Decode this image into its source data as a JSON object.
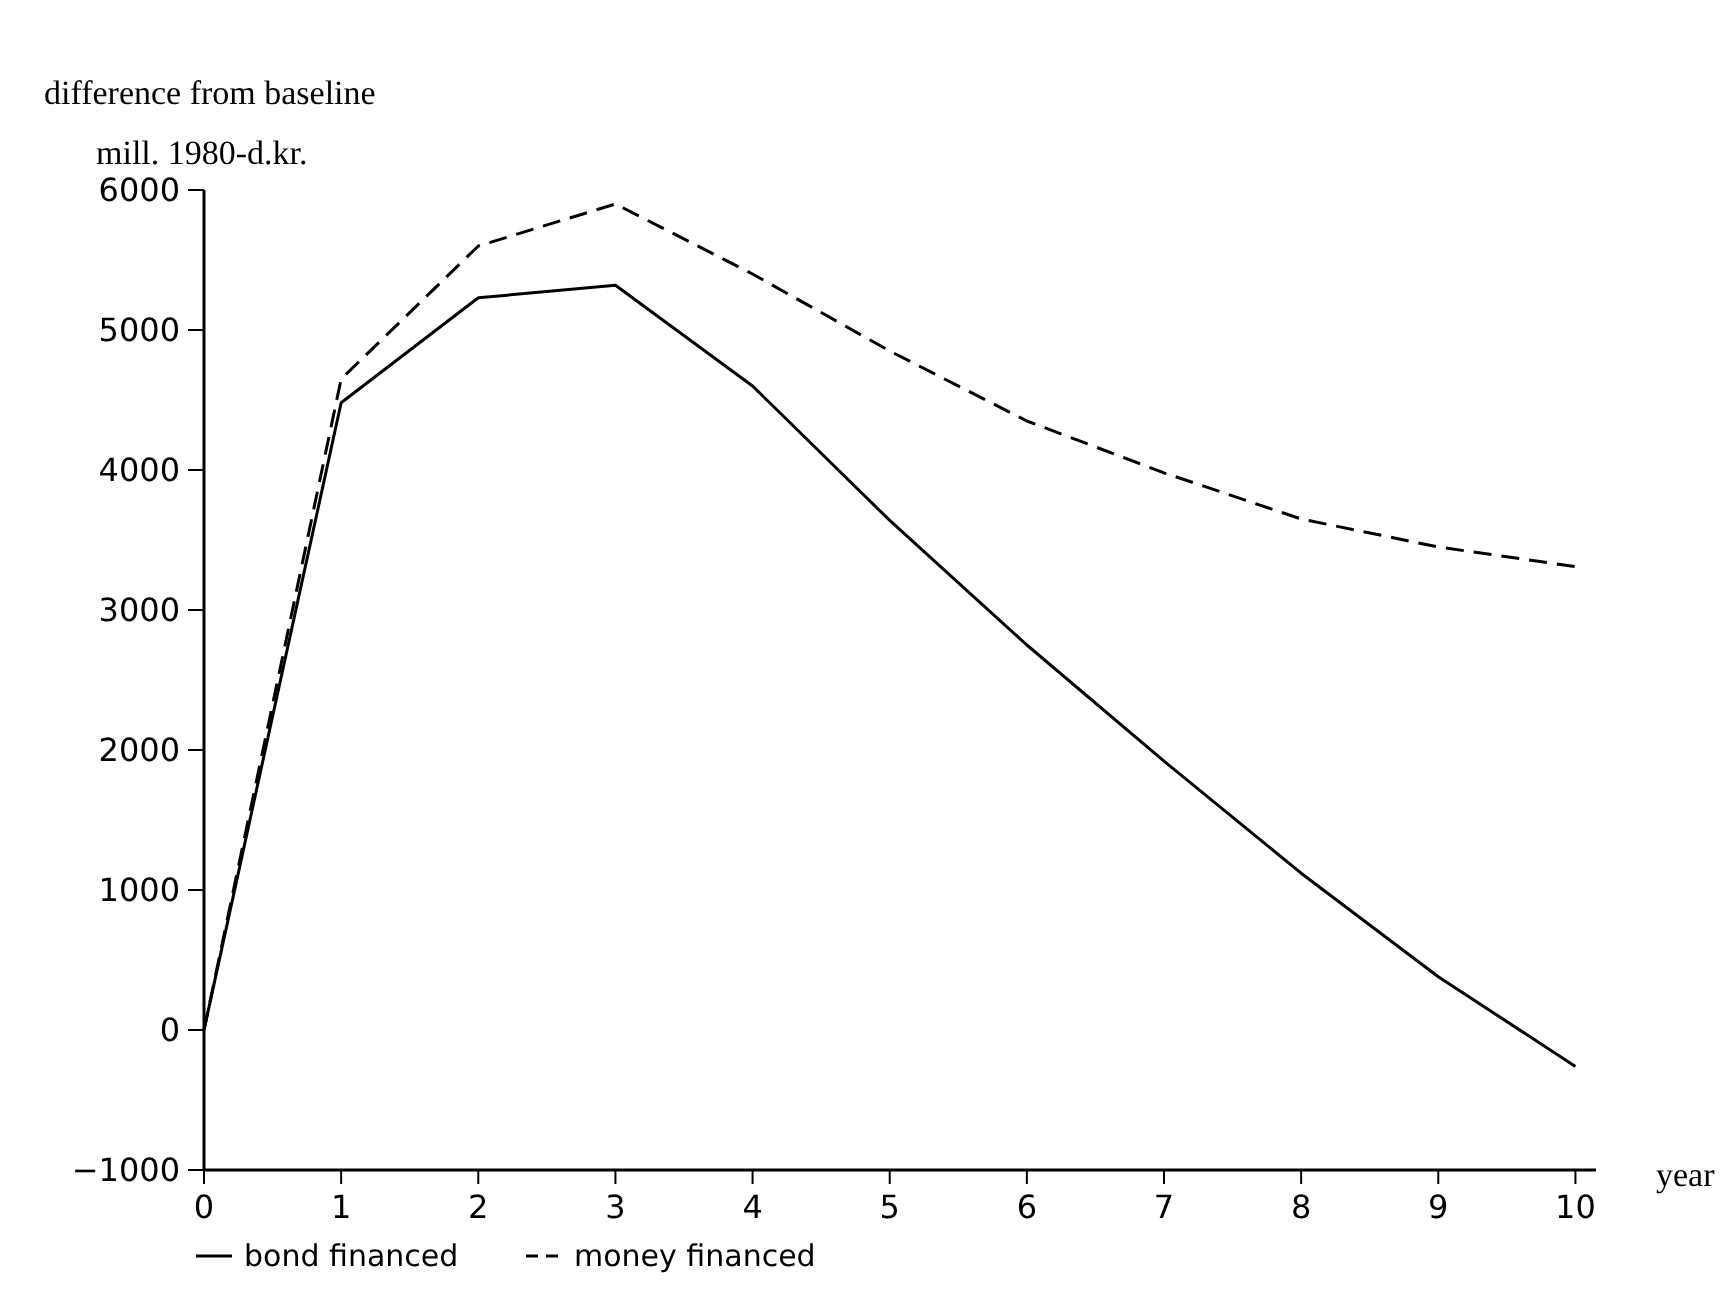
{
  "chart_data": {
    "type": "line",
    "title": "difference from baseline",
    "ylabel": "mill. 1980-d.kr.",
    "xlabel": "year",
    "x": [
      0,
      1,
      2,
      3,
      4,
      5,
      6,
      7,
      8,
      9,
      10
    ],
    "series": [
      {
        "name": "bond financed",
        "color": "#000000",
        "line_style": "solid",
        "values": [
          0,
          4480,
          5230,
          5320,
          4600,
          3640,
          2750,
          1920,
          1120,
          380,
          -260
        ]
      },
      {
        "name": "money financed",
        "color": "#000000",
        "line_style": "dashed",
        "values": [
          0,
          4650,
          5600,
          5900,
          5400,
          4850,
          4350,
          3980,
          3650,
          3450,
          3310
        ]
      }
    ],
    "xlim": [
      0,
      10.15
    ],
    "xticks": [
      0,
      1,
      2,
      3,
      4,
      5,
      6,
      7,
      8,
      9,
      10
    ],
    "ylim": [
      -1000,
      6000
    ],
    "yticks": [
      -1000,
      0,
      1000,
      2000,
      3000,
      4000,
      5000,
      6000
    ],
    "grid": false,
    "legend": "bottom left",
    "marker": "none"
  }
}
